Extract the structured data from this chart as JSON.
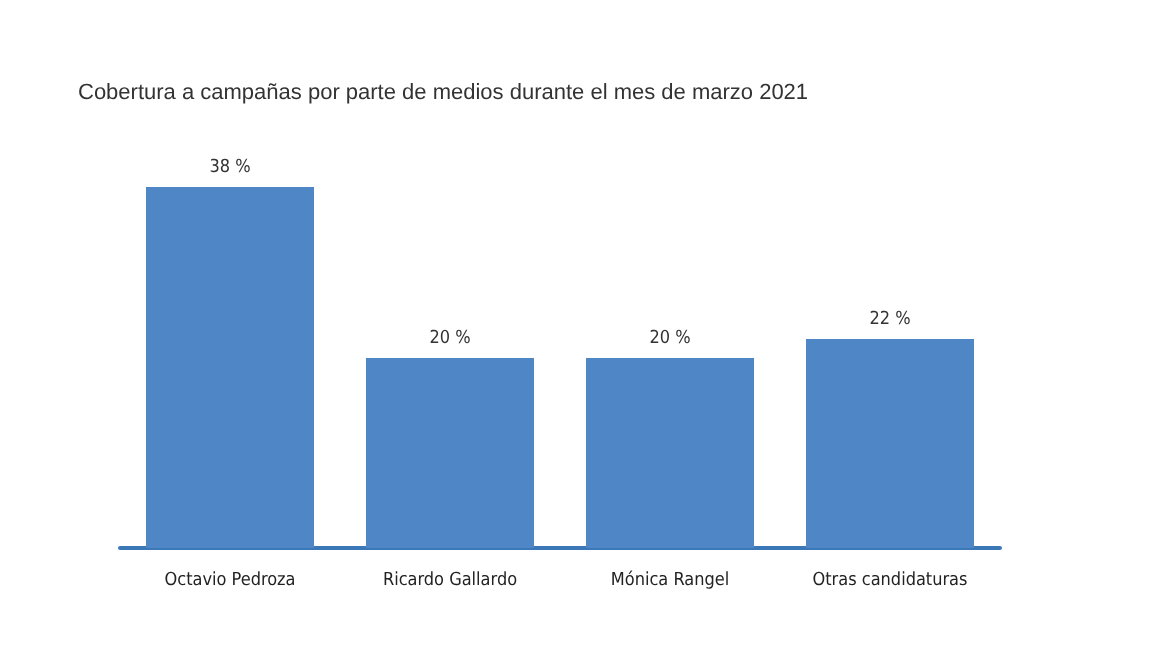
{
  "chart_data": {
    "type": "bar",
    "title": "Cobertura a campañas por parte de medios durante el mes de marzo 2021",
    "categories": [
      "Octavio Pedroza",
      "Ricardo Gallardo",
      "Mónica Rangel",
      "Otras candidaturas"
    ],
    "values": [
      38,
      20,
      20,
      22
    ],
    "value_labels": [
      "38 %",
      "20 %",
      "20 %",
      "22 %"
    ],
    "color": "#4f86c6"
  }
}
